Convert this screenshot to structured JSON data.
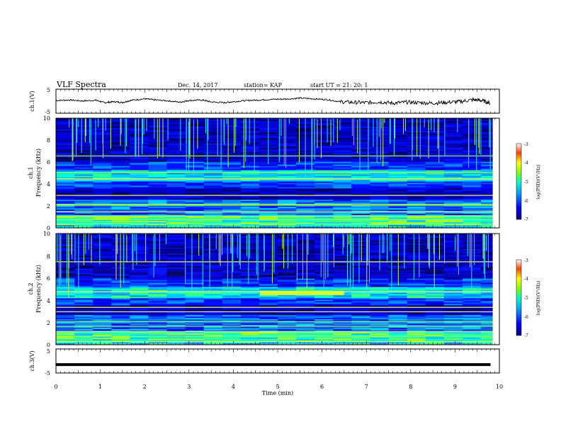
{
  "header": {
    "title": "VLF Spectra",
    "date": "Dec. 14, 2017",
    "station": "station= KAP",
    "start": "start  UT  =   21: 20: 1"
  },
  "chart_data": [
    {
      "type": "line",
      "ylabel": "ch.1(V)",
      "ylim": [
        -5,
        5
      ],
      "yticks": [
        "5",
        "-5"
      ],
      "xlim": [
        0,
        10
      ],
      "series": [
        {
          "x": [
            0,
            0.3,
            0.6,
            0.9,
            1.1,
            1.3,
            1.5,
            1.7,
            2.0,
            2.2,
            2.5,
            2.8,
            3.0,
            3.3,
            3.5,
            3.8,
            4.0,
            4.3,
            4.6,
            4.9,
            5.2,
            5.5,
            5.8,
            6.1,
            6.4,
            6.7,
            7.0,
            7.3,
            7.6,
            7.9,
            8.2,
            8.5,
            8.8,
            9.1,
            9.4,
            9.6,
            9.8
          ],
          "y": [
            0.3,
            0.5,
            0.1,
            0.4,
            -0.6,
            -0.2,
            -0.5,
            0.4,
            1.0,
            0.6,
            0.2,
            -0.4,
            0.3,
            0.5,
            -0.3,
            -0.6,
            -0.2,
            0.3,
            0.5,
            0.8,
            0.9,
            1.3,
            1.0,
            0.7,
            -0.2,
            -0.5,
            -0.6,
            -0.3,
            -0.8,
            -0.4,
            -0.6,
            -0.8,
            -0.5,
            -0.2,
            0.6,
            0.3,
            -0.8
          ]
        }
      ]
    },
    {
      "type": "heatmap",
      "ylabel_top": "ch.1",
      "ylabel": "Frequency (kHz)",
      "ylim": [
        0,
        10
      ],
      "yticks": [
        "0",
        "2",
        "4",
        "6",
        "8",
        "10"
      ],
      "xlim": [
        0,
        10
      ],
      "colorbar": {
        "label": "log(PSD)(V²/Hz)",
        "range": [
          -7,
          -3
        ],
        "ticks": [
          "-3",
          "-4",
          "-5",
          "-6",
          "-7"
        ]
      }
    },
    {
      "type": "heatmap",
      "ylabel_top": "ch.2",
      "ylabel": "Frequency (kHz)",
      "ylim": [
        0,
        10
      ],
      "yticks": [
        "0",
        "2",
        "4",
        "6",
        "8",
        "10"
      ],
      "xlim": [
        0,
        10
      ],
      "colorbar": {
        "label": "log(PSD)(V²/Hz)",
        "range": [
          -7,
          -3
        ],
        "ticks": [
          "-3",
          "-4",
          "-5",
          "-6",
          "-7"
        ]
      }
    },
    {
      "type": "line",
      "ylabel": "ch.3(V)",
      "ylim": [
        -5,
        5
      ],
      "yticks": [
        "5",
        "-5"
      ],
      "xlim": [
        0,
        10
      ],
      "xlabel": "Time  (min)",
      "xticks": [
        "0",
        "1",
        "2",
        "3",
        "4",
        "5",
        "6",
        "7",
        "8",
        "9",
        "10"
      ],
      "series": [
        {
          "x": [
            0,
            9.8
          ],
          "y": [
            -1.5,
            -1.5
          ]
        }
      ]
    }
  ]
}
